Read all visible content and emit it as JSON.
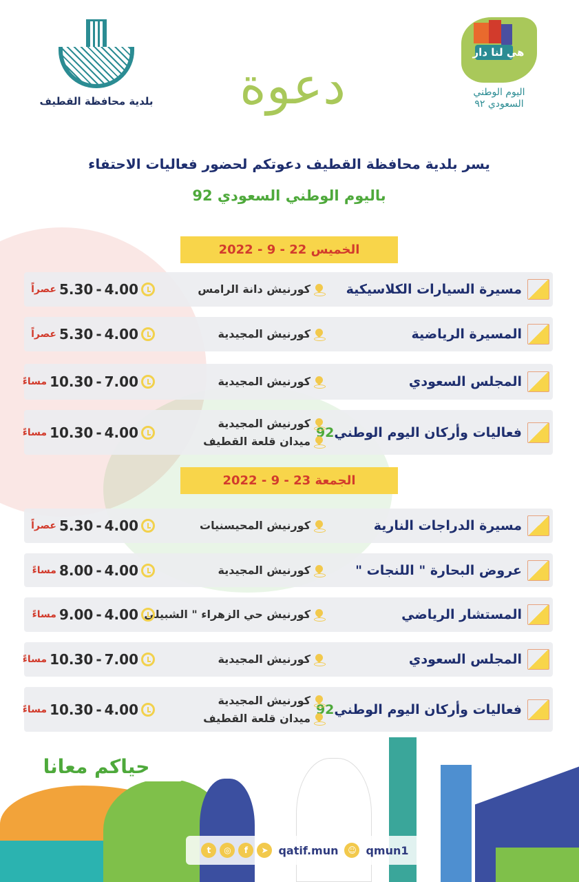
{
  "header": {
    "municipality_name": "بلدية محافظة القطيف",
    "invitation_word": "دعوة",
    "national_day_logo_text": [
      "اليوم الوطني",
      "السعودي ٩٢"
    ],
    "national_day_logo_slogan": "هي لنا دار"
  },
  "intro": {
    "line1": "يسر بلدية محافظة القطيف دعوتكم لحضور فعاليات الاحتفاء",
    "line2": "باليوم الوطني السعودي 92"
  },
  "days": [
    {
      "date": "الخميس 22 - 9 - 2022",
      "events": [
        {
          "title": "مسيرة السيارات الكلاسيكية",
          "icon": "classic-car-icon",
          "locations": [
            "كورنيش دانة الرامس"
          ],
          "start": "4.00",
          "end": "5.30",
          "suffix": "عصراً"
        },
        {
          "title": "المسيرة الرياضية",
          "icon": "runner-icon",
          "locations": [
            "كورنيش المجيدية"
          ],
          "start": "4.00",
          "end": "5.30",
          "suffix": "عصراً"
        },
        {
          "title": "المجلس السعودي",
          "icon": "tent-icon",
          "locations": [
            "كورنيش المجيدية"
          ],
          "start": "7.00",
          "end": "10.30",
          "suffix": "مساءً"
        },
        {
          "title": "فعاليات وأركان اليوم الوطني",
          "title_num": "92",
          "icon": "booth-icon",
          "locations": [
            "كورنيش المجيدية",
            "ميدان قلعة القطيف"
          ],
          "start": "4.00",
          "end": "10.30",
          "suffix": "مساءً"
        }
      ]
    },
    {
      "date": "الجمعة 23 - 9 - 2022",
      "events": [
        {
          "title": "مسيرة الدراجات النارية",
          "icon": "motorcycle-icon",
          "locations": [
            "كورنيش المحيسنيات"
          ],
          "start": "4.00",
          "end": "5.30",
          "suffix": "عصراً"
        },
        {
          "title": "عروض البحارة \" اللنجات \"",
          "icon": "boat-icon",
          "locations": [
            "كورنيش المجيدية"
          ],
          "start": "4.00",
          "end": "8.00",
          "suffix": "مساءً"
        },
        {
          "title": "المستشار الرياضي",
          "icon": "heart-dumbbell-icon",
          "locations": [
            "كورنيش حي الزهراء \" الشبيلي"
          ],
          "start": "4.00",
          "end": "9.00",
          "suffix": "مساءً"
        },
        {
          "title": "المجلس السعودي",
          "icon": "tent-icon",
          "locations": [
            "كورنيش المجيدية"
          ],
          "start": "7.00",
          "end": "10.30",
          "suffix": "مساءً"
        },
        {
          "title": "فعاليات وأركان اليوم الوطني",
          "title_num": "92",
          "icon": "booth-icon",
          "locations": [
            "كورنيش المجيدية",
            "ميدان قلعة القطيف"
          ],
          "start": "4.00",
          "end": "10.30",
          "suffix": "مساءً"
        }
      ]
    }
  ],
  "footer": {
    "slogan": "حياكم معانا",
    "social_icons": [
      "twitter-icon",
      "instagram-icon",
      "facebook-icon",
      "telegram-icon"
    ],
    "handle1": "qatif.mun",
    "snapchat_icon": "snapchat-icon",
    "handle2": "qmun1"
  },
  "colors": {
    "navy": "#1e2e6e",
    "yellow": "#f8d54a",
    "red": "#d23b2c",
    "green": "#4ea93b",
    "teal": "#2b8c93",
    "olive": "#a9c85a"
  }
}
